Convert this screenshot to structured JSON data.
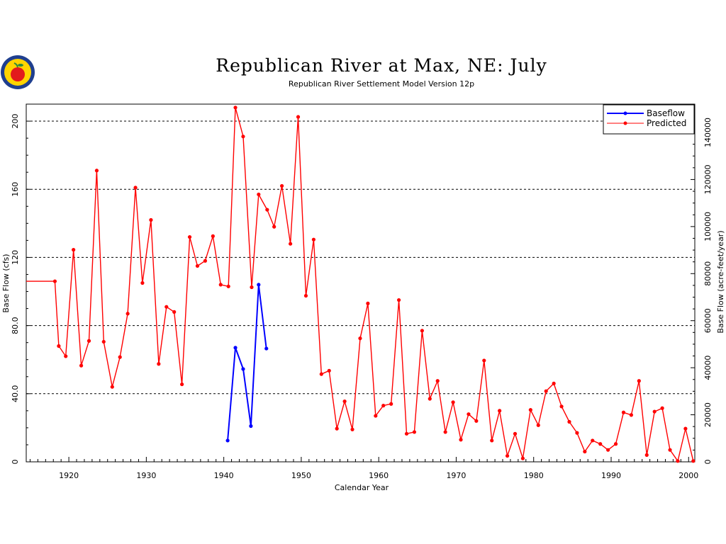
{
  "chart_data": {
    "type": "line",
    "title": "Republican  River  at  Max,  NE:  July",
    "subtitle": "Republican River Settlement Model Version 12p",
    "xlabel": "Calendar Year",
    "ylabel": "Base Flow (cfs)",
    "ylabel_right": "Base Flow (acre-feet/year)",
    "xlim": [
      1914.5,
      2000.8
    ],
    "ylim": [
      0,
      210
    ],
    "x_ticks": [
      1920,
      1930,
      1940,
      1950,
      1960,
      1970,
      1980,
      1990,
      2000
    ],
    "y_ticks": [
      0,
      40,
      80,
      120,
      160,
      200
    ],
    "y_tick_labels": [
      "0",
      "40.0",
      "80.0",
      "120",
      "160",
      "200"
    ],
    "y2_ticks": [
      0,
      20000,
      40000,
      60000,
      80000,
      100000,
      120000,
      140000
    ],
    "y2_per_cfs": 724,
    "grid": "horizontal dashed",
    "legend_position": "top-right",
    "series": [
      {
        "name": "Baseflow",
        "color": "#0000ff",
        "points": [
          [
            1940.5,
            12.5
          ],
          [
            1941.5,
            67
          ],
          [
            1942.5,
            54.5
          ],
          [
            1943.5,
            21
          ],
          [
            1944.5,
            104
          ],
          [
            1945.5,
            66.5
          ]
        ]
      },
      {
        "name": "Predicted",
        "color": "#ff0000",
        "points": [
          [
            1914.5,
            106
          ],
          [
            1918.2,
            106
          ],
          [
            1918.7,
            68
          ],
          [
            1919.6,
            62
          ],
          [
            1920.6,
            124.5
          ],
          [
            1921.6,
            56.5
          ],
          [
            1922.6,
            71
          ],
          [
            1923.6,
            171
          ],
          [
            1924.5,
            70.5
          ],
          [
            1925.6,
            44
          ],
          [
            1926.6,
            61.5
          ],
          [
            1927.6,
            87
          ],
          [
            1928.6,
            161
          ],
          [
            1929.5,
            105
          ],
          [
            1930.6,
            142
          ],
          [
            1931.6,
            57.5
          ],
          [
            1932.6,
            91
          ],
          [
            1933.6,
            88
          ],
          [
            1934.6,
            45.5
          ],
          [
            1935.6,
            132
          ],
          [
            1936.6,
            115
          ],
          [
            1937.6,
            118
          ],
          [
            1938.6,
            132.5
          ],
          [
            1939.6,
            104
          ],
          [
            1940.6,
            103
          ],
          [
            1941.5,
            208
          ],
          [
            1942.5,
            191
          ],
          [
            1943.6,
            102.5
          ],
          [
            1944.5,
            157
          ],
          [
            1945.6,
            148
          ],
          [
            1946.5,
            138
          ],
          [
            1947.5,
            162
          ],
          [
            1948.6,
            128
          ],
          [
            1949.6,
            202.5
          ],
          [
            1950.6,
            97.5
          ],
          [
            1951.6,
            130.5
          ],
          [
            1952.6,
            51.5
          ],
          [
            1953.6,
            53.5
          ],
          [
            1954.6,
            19.5
          ],
          [
            1955.6,
            35.5
          ],
          [
            1956.6,
            19
          ],
          [
            1957.6,
            72.5
          ],
          [
            1958.6,
            93
          ],
          [
            1959.6,
            27
          ],
          [
            1960.6,
            33
          ],
          [
            1961.6,
            34
          ],
          [
            1962.6,
            95
          ],
          [
            1963.6,
            16.5
          ],
          [
            1964.6,
            17.5
          ],
          [
            1965.6,
            77
          ],
          [
            1966.6,
            37
          ],
          [
            1967.6,
            47.5
          ],
          [
            1968.6,
            17.5
          ],
          [
            1969.6,
            35
          ],
          [
            1970.6,
            13
          ],
          [
            1971.6,
            28
          ],
          [
            1972.6,
            24
          ],
          [
            1973.6,
            59.5
          ],
          [
            1974.6,
            12.5
          ],
          [
            1975.6,
            30
          ],
          [
            1976.6,
            3.5
          ],
          [
            1977.6,
            16.5
          ],
          [
            1978.6,
            2
          ],
          [
            1979.6,
            30.5
          ],
          [
            1980.6,
            21.5
          ],
          [
            1981.6,
            41.5
          ],
          [
            1982.6,
            46
          ],
          [
            1983.6,
            32.5
          ],
          [
            1984.6,
            23.5
          ],
          [
            1985.6,
            17
          ],
          [
            1986.6,
            6
          ],
          [
            1987.6,
            12.5
          ],
          [
            1988.6,
            10.5
          ],
          [
            1989.6,
            7
          ],
          [
            1990.6,
            10.5
          ],
          [
            1991.6,
            29
          ],
          [
            1992.6,
            27.5
          ],
          [
            1993.6,
            47.5
          ],
          [
            1994.6,
            4
          ],
          [
            1995.6,
            29.5
          ],
          [
            1996.6,
            31.5
          ],
          [
            1997.6,
            7
          ],
          [
            1998.6,
            0.5
          ],
          [
            1999.6,
            19.5
          ],
          [
            2000.6,
            0.5
          ]
        ]
      }
    ]
  },
  "logo": {
    "colors": [
      "#1f3f8f",
      "#ffd400",
      "#e31a1c",
      "#2e8b3d"
    ]
  }
}
